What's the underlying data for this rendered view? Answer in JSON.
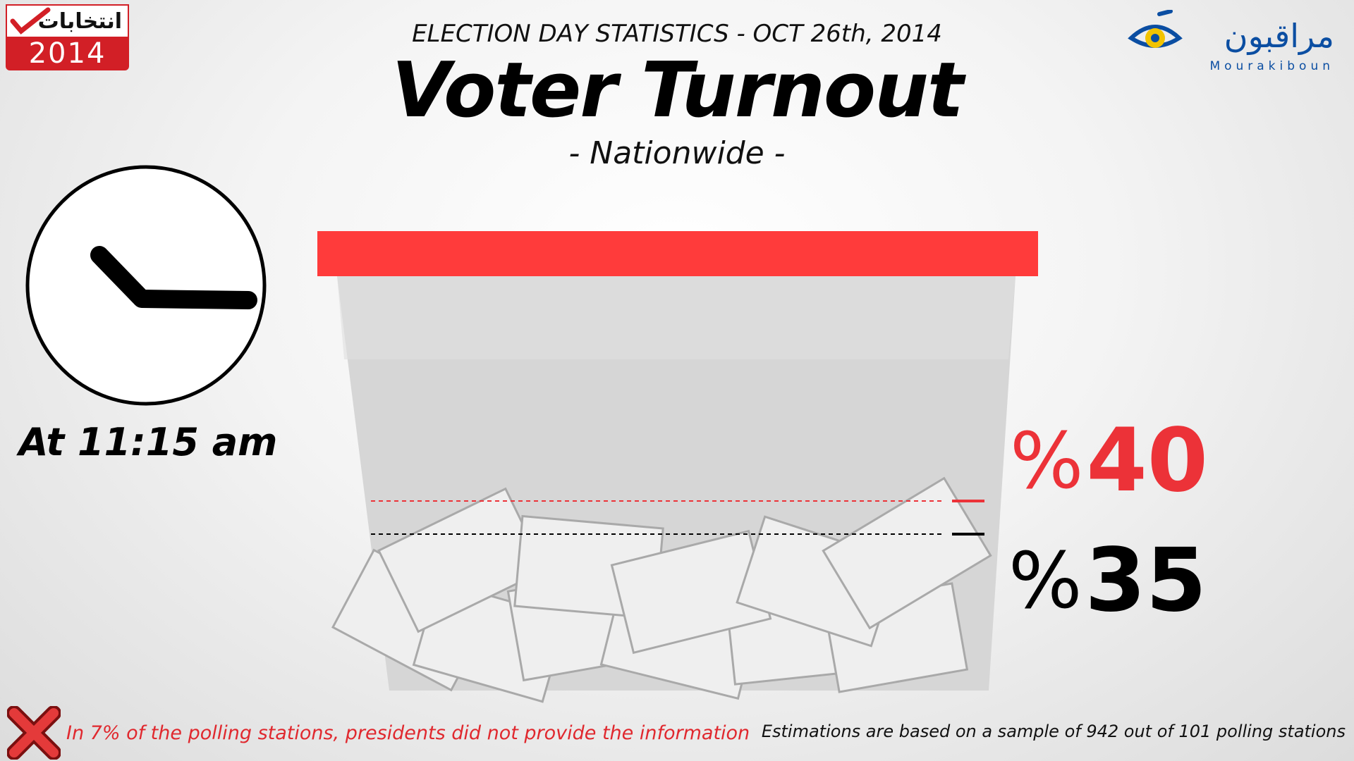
{
  "logo_left": {
    "arabic_text": "انتخابات",
    "year": "2014"
  },
  "logo_right": {
    "arabic_text": "مراقبون",
    "latin_text": "Mourakiboun",
    "color": "#0b4ea2"
  },
  "header": {
    "subtitle": "ELECTION DAY STATISTICS - OCT 26th, 2014",
    "title": "Voter Turnout",
    "scope": "- Nationwide -"
  },
  "clock": {
    "icon": "clock-icon",
    "prefix": "At",
    "time": "11:15 am"
  },
  "turnout": {
    "high": {
      "value": "40",
      "symbol": "%",
      "fraction": 0.4,
      "color": "#ec3238"
    },
    "low": {
      "value": "35",
      "symbol": "%",
      "fraction": 0.35,
      "color": "#000000"
    }
  },
  "footer": {
    "left_icon": "red-x-icon",
    "left_text": "In 7% of  the polling stations, presidents did not provide the information",
    "right_text": "Estimations are based on a sample of  942 out of  101 polling stations"
  },
  "colors": {
    "accent_red": "#ff3b3b",
    "box_gray": "#d9d9d9"
  }
}
